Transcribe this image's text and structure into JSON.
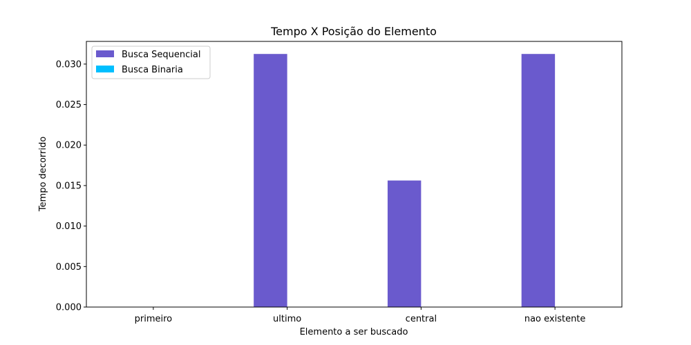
{
  "chart_data": {
    "type": "bar",
    "title": "Tempo X Posição do Elemento",
    "xlabel": "Elemento a ser buscado",
    "ylabel": "Tempo decorrido",
    "categories": [
      "primeiro",
      "ultimo",
      "central",
      "nao existente"
    ],
    "series": [
      {
        "name": "Busca Sequencial",
        "values": [
          0.0,
          0.03125,
          0.015625,
          0.03125
        ],
        "color": "#6a5acd"
      },
      {
        "name": "Busca Binaria",
        "values": [
          0.0,
          0.0,
          0.0,
          0.0
        ],
        "color": "#00bfff"
      }
    ],
    "ylim": [
      0,
      0.0328
    ],
    "yticks": [
      0.0,
      0.005,
      0.01,
      0.015,
      0.02,
      0.025,
      0.03
    ],
    "ytick_labels": [
      "0.000",
      "0.005",
      "0.010",
      "0.015",
      "0.020",
      "0.025",
      "0.030"
    ],
    "grid": false,
    "legend_position": "top-left"
  }
}
